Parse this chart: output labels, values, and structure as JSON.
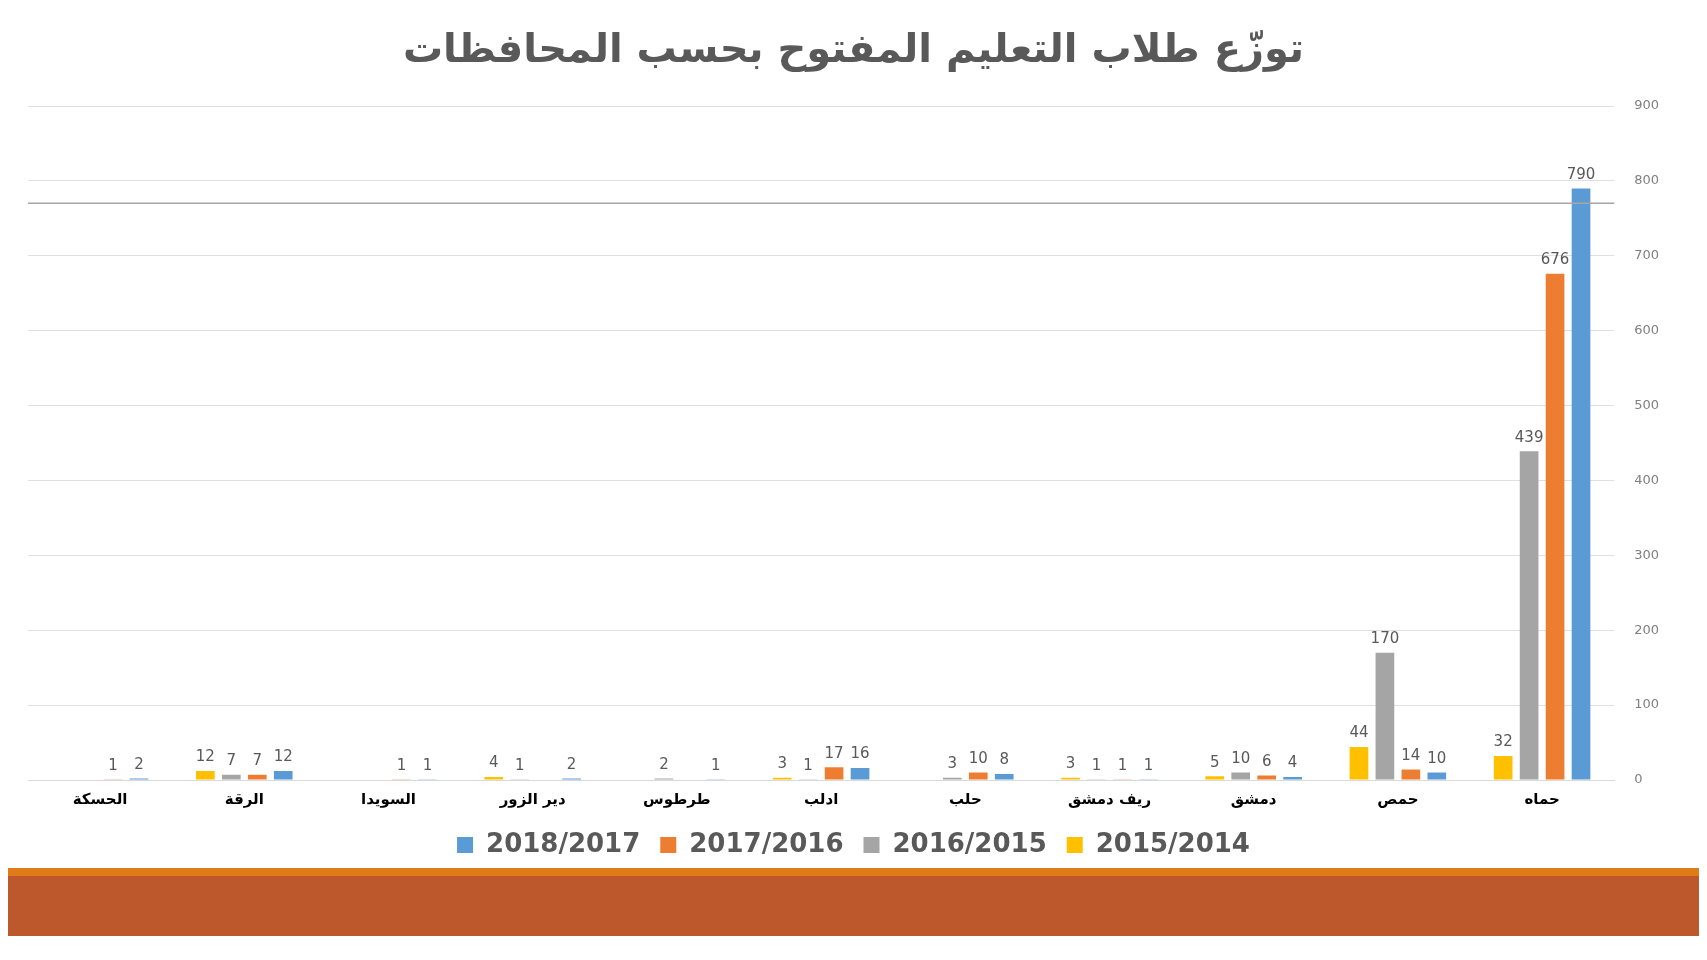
{
  "chart_data": {
    "type": "bar",
    "title": "توزّع طلاب التعليم المفتوح بحسب المحافظات",
    "categories": [
      "الحسكة",
      "الرقة",
      "السويدا",
      "دير الزور",
      "طرطوس",
      "ادلب",
      "حلب",
      "ريف دمشق",
      "دمشق",
      "حمص",
      "حماه"
    ],
    "series": [
      {
        "name": "2015/2014",
        "color": "#ffc000",
        "values": [
          null,
          12,
          null,
          4,
          null,
          3,
          null,
          3,
          5,
          44,
          32
        ]
      },
      {
        "name": "2016/2015",
        "color": "#a5a5a5",
        "values": [
          null,
          7,
          null,
          1,
          2,
          1,
          3,
          1,
          10,
          170,
          439
        ]
      },
      {
        "name": "2017/2016",
        "color": "#ed7d31",
        "values": [
          1,
          7,
          1,
          null,
          null,
          17,
          10,
          1,
          6,
          14,
          676
        ]
      },
      {
        "name": "2018/2017",
        "color": "#5b9bd5",
        "values": [
          2,
          12,
          1,
          2,
          1,
          16,
          8,
          1,
          4,
          10,
          790
        ]
      }
    ],
    "ylim": [
      0,
      900
    ],
    "yticks": [
      0,
      100,
      200,
      300,
      400,
      500,
      600,
      700,
      800,
      900
    ],
    "grid": "y",
    "legend": "bottom",
    "data_labels": true,
    "ref_lines": [
      {
        "axis": "y",
        "value": 770,
        "color": "#a6a6a6"
      }
    ]
  }
}
